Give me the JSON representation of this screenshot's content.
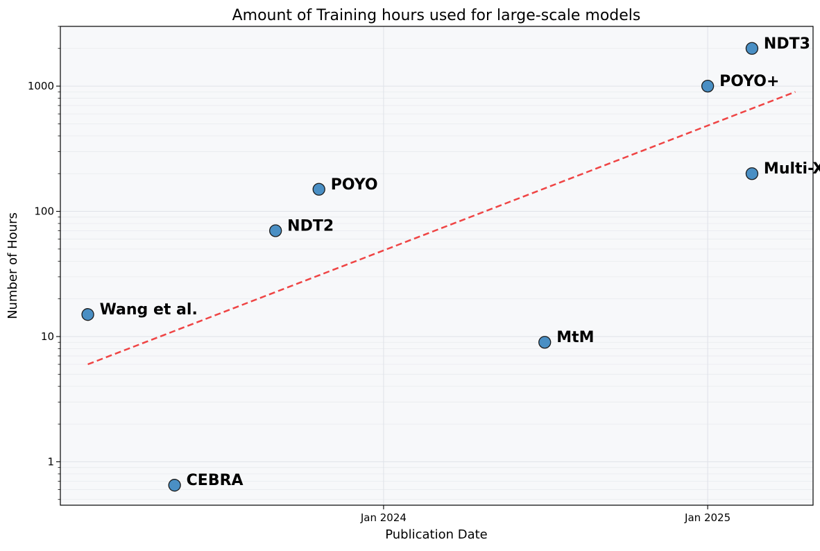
{
  "chart_data": {
    "type": "scatter",
    "title": "Amount of Training hours used for large-scale models",
    "xlabel": "Publication Date",
    "ylabel": "Number of Hours",
    "x_scale": "time",
    "y_scale": "log",
    "xlim": [
      "2023-01-01",
      "2025-04-30"
    ],
    "ylim": [
      0.45,
      3000
    ],
    "x_ticks": [
      {
        "date": "2024-01-01",
        "label": "Jan 2024"
      },
      {
        "date": "2025-01-01",
        "label": "Jan 2025"
      }
    ],
    "y_ticks": [
      {
        "value": 1,
        "label": "1"
      },
      {
        "value": 10,
        "label": "10"
      },
      {
        "value": 100,
        "label": "100"
      },
      {
        "value": 1000,
        "label": "1000"
      }
    ],
    "grid": true,
    "points": [
      {
        "label": "Wang et al.",
        "date": "2023-02-01",
        "hours": 15
      },
      {
        "label": "CEBRA",
        "date": "2023-05-10",
        "hours": 0.65
      },
      {
        "label": "NDT2",
        "date": "2023-09-01",
        "hours": 70
      },
      {
        "label": "POYO",
        "date": "2023-10-20",
        "hours": 150
      },
      {
        "label": "MtM",
        "date": "2024-07-01",
        "hours": 9
      },
      {
        "label": "POYO+",
        "date": "2025-01-01",
        "hours": 1000
      },
      {
        "label": "NDT3",
        "date": "2025-02-20",
        "hours": 2000
      },
      {
        "label": "Multi-X DDM",
        "date": "2025-02-20",
        "hours": 200
      }
    ],
    "trend_line": {
      "style": "dashed",
      "color": "#ef4444",
      "start": {
        "date": "2023-02-01",
        "hours": 6
      },
      "end": {
        "date": "2025-04-10",
        "hours": 900
      }
    },
    "colors": {
      "marker_fill": "#4a8fc4",
      "marker_edge": "#1a1a1a",
      "plot_background": "#f7f8fa"
    }
  }
}
